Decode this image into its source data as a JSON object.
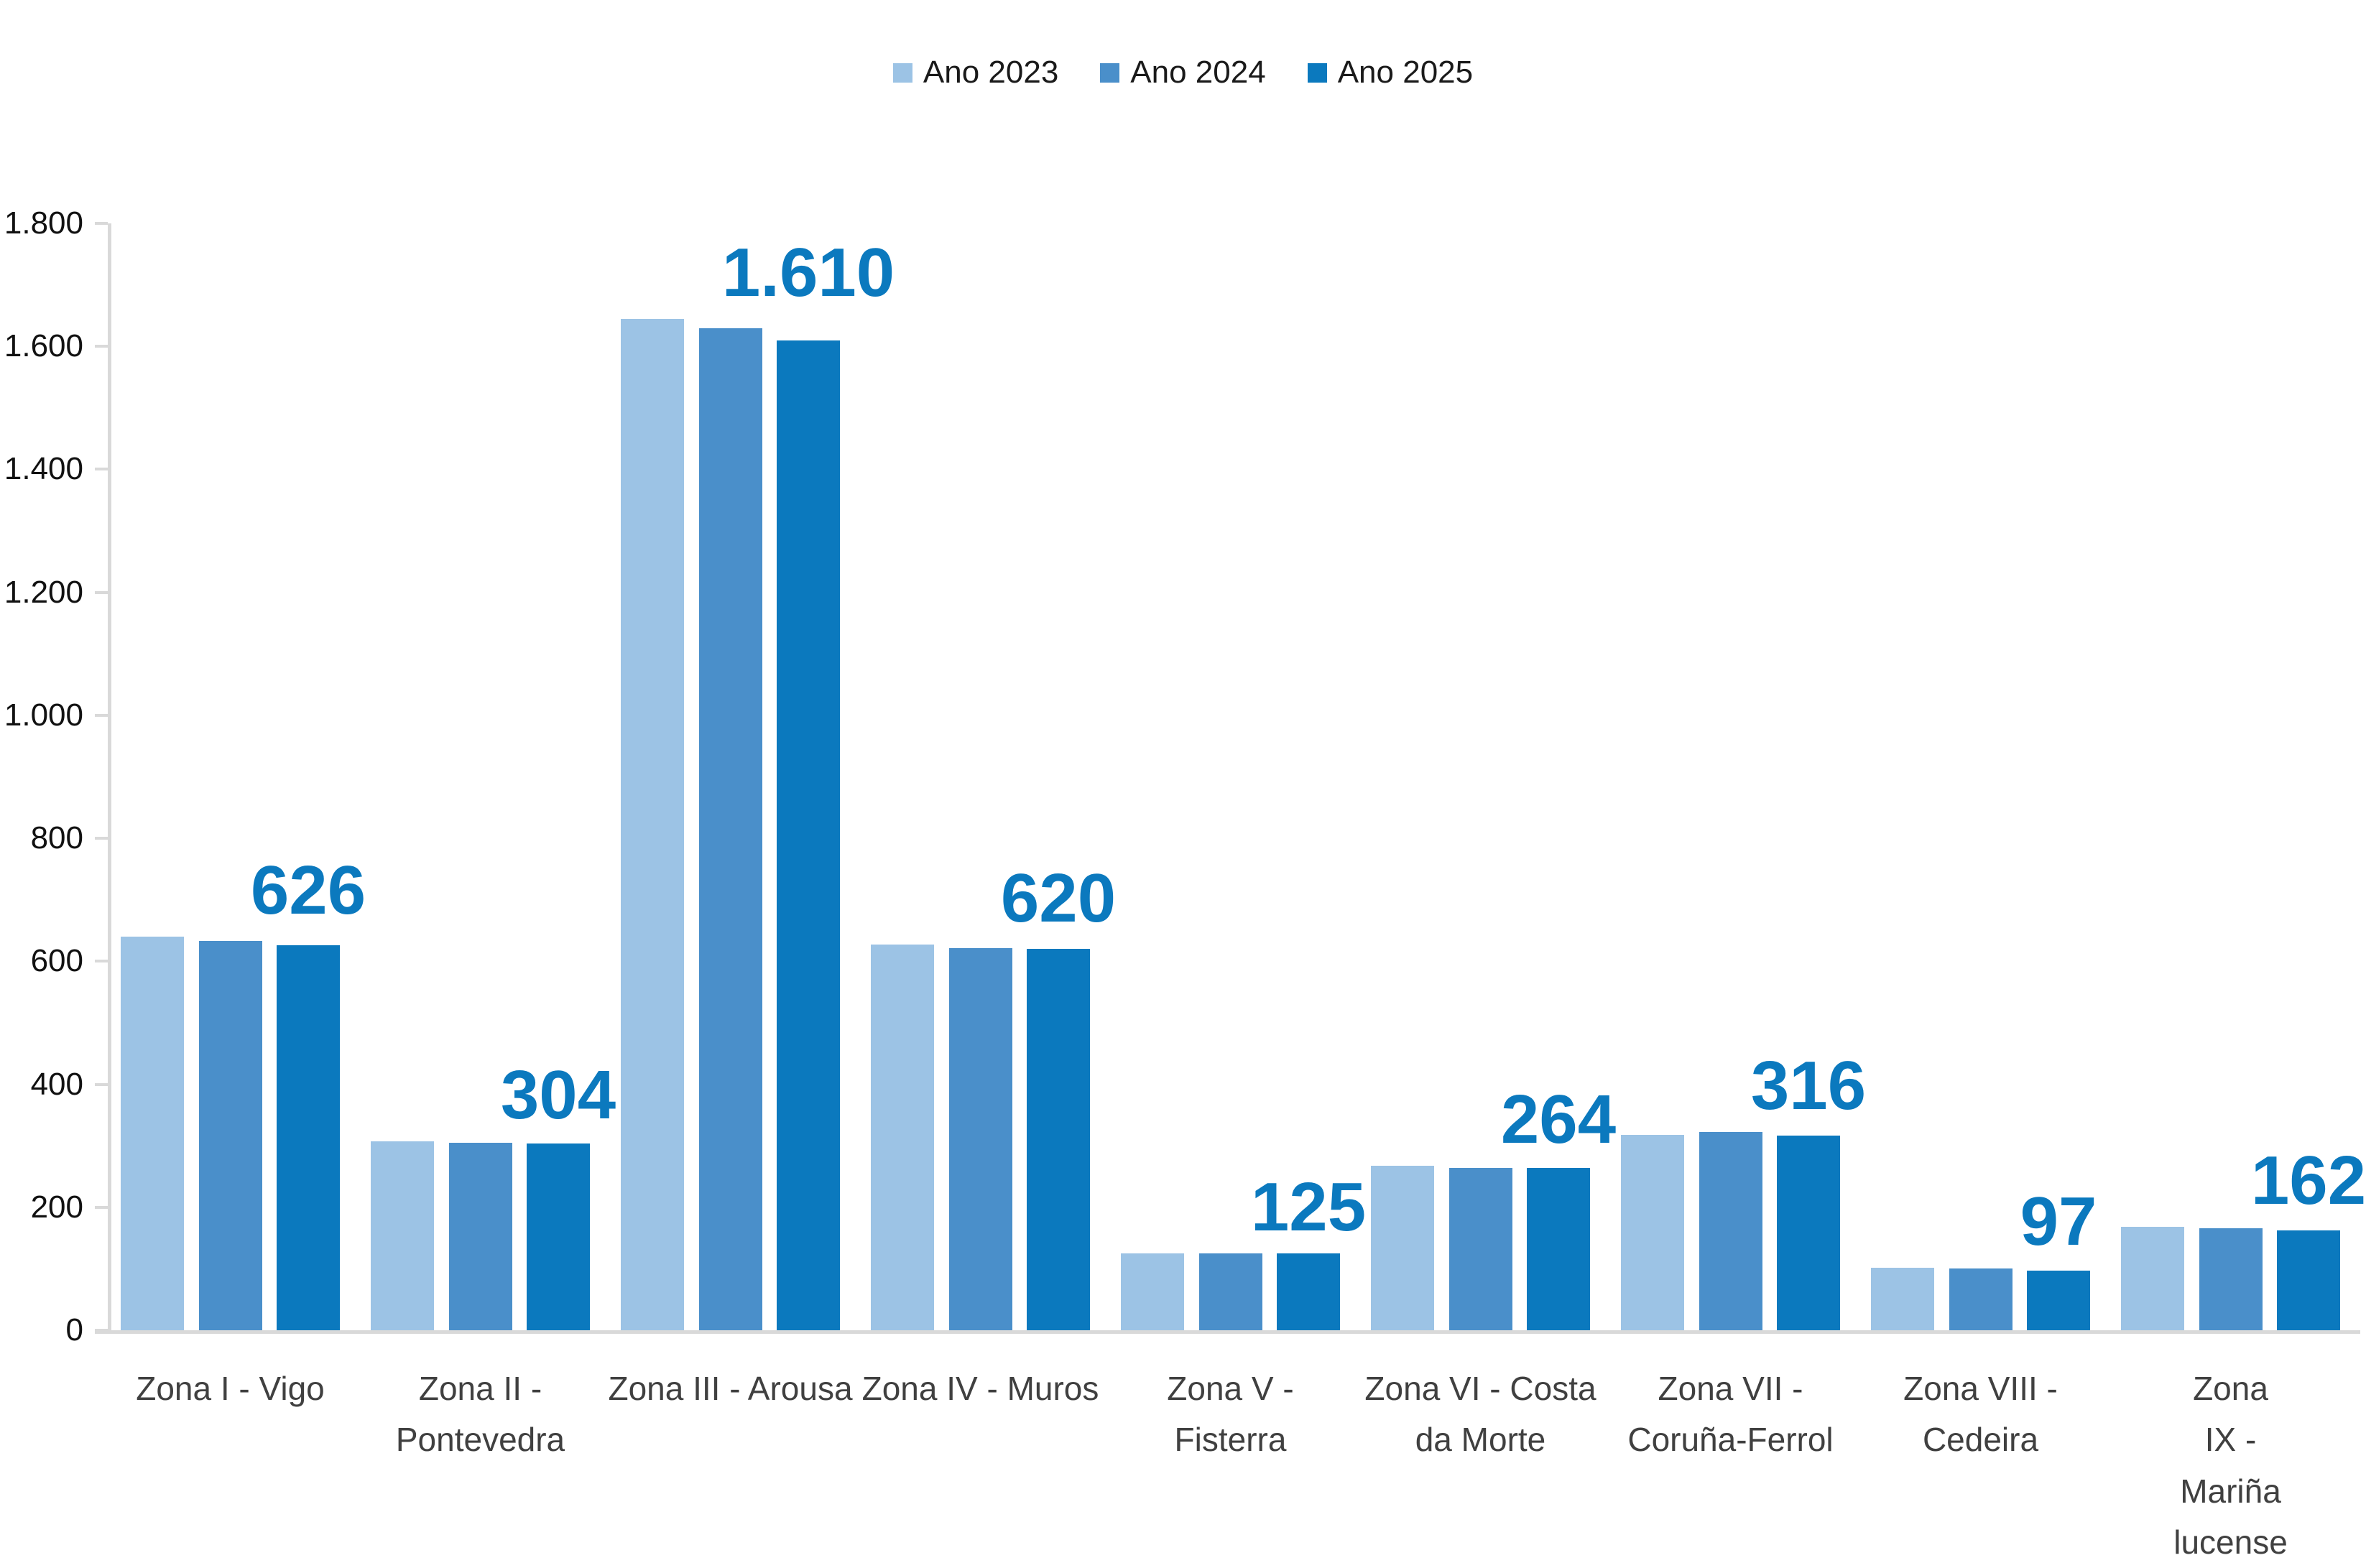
{
  "legend": {
    "items": [
      {
        "label": "Ano 2023",
        "color": "#9cc3e5"
      },
      {
        "label": "Ano 2024",
        "color": "#4a8fca"
      },
      {
        "label": "Ano 2025",
        "color": "#0b79be"
      }
    ]
  },
  "y_axis": {
    "tick_labels": [
      "1.800",
      "1.600",
      "1.400",
      "1.200",
      "1.000",
      "800",
      "600",
      "400",
      "200",
      "0"
    ],
    "max": 1800,
    "step": 200
  },
  "chart_data": {
    "type": "bar",
    "title": "",
    "categories": [
      "Zona I - Vigo",
      "Zona II -\nPontevedra",
      "Zona III - Arousa",
      "Zona IV - Muros",
      "Zona V -\nFisterra",
      "Zona VI - Costa\nda Morte",
      "Zona VII -\nCoruña-Ferrol",
      "Zona VIII -\nCedeira",
      "Zona IX - Mariña\nlucense"
    ],
    "series": [
      {
        "name": "Ano 2023",
        "color": "#9cc3e5",
        "values": [
          640,
          307,
          1645,
          627,
          125,
          267,
          318,
          102,
          168
        ]
      },
      {
        "name": "Ano 2024",
        "color": "#4a8fca",
        "values": [
          633,
          305,
          1630,
          621,
          125,
          264,
          322,
          101,
          166
        ]
      },
      {
        "name": "Ano 2025",
        "color": "#0b79be",
        "values": [
          626,
          304,
          1610,
          620,
          125,
          264,
          316,
          97,
          162
        ]
      }
    ],
    "data_labels": {
      "series": "Ano 2025",
      "values": [
        "626",
        "304",
        "1.610",
        "620",
        "125",
        "264",
        "316",
        "97",
        "162"
      ],
      "color": "#0b79be"
    },
    "ylim": [
      0,
      1800
    ],
    "grid": false,
    "legend_position": "top-center",
    "axis_color": "#d9d9d9",
    "x_label_color": "#404040",
    "y_label_color": "#111111"
  }
}
